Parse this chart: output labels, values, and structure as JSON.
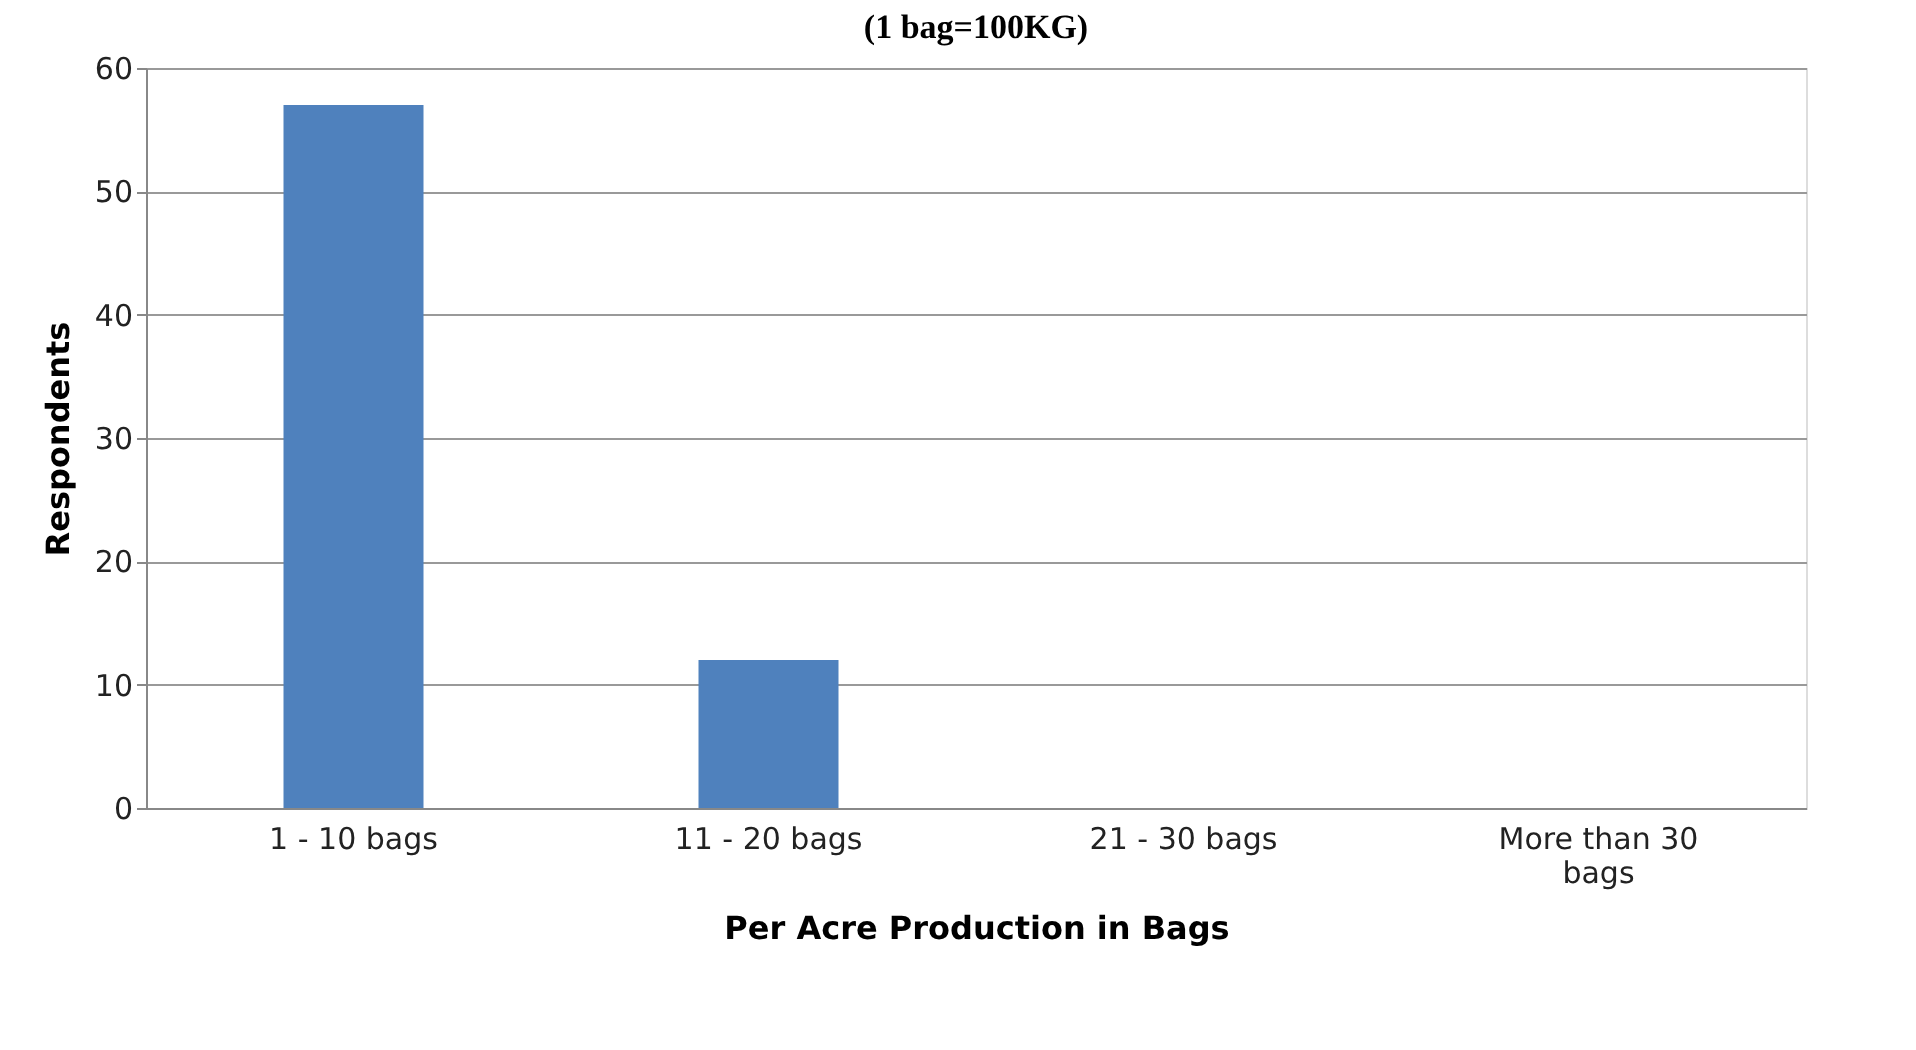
{
  "chart_data": {
    "type": "bar",
    "title": "(1 bag=100KG)",
    "xlabel": "Per Acre Production in Bags",
    "ylabel": "Respondents",
    "categories": [
      "1  - 10 bags",
      "11  - 20 bags",
      "21 - 30 bags",
      "More than 30 bags"
    ],
    "values": [
      57,
      12,
      0,
      0
    ],
    "color": "#4f81bd",
    "ylim": [
      0,
      60
    ],
    "yticks": [
      0,
      10,
      20,
      30,
      40,
      50,
      60
    ],
    "grid": "y"
  }
}
